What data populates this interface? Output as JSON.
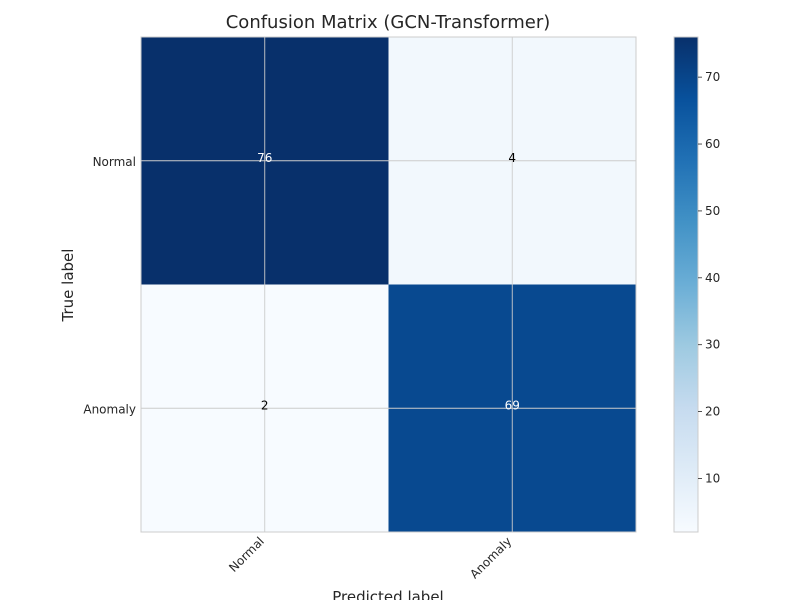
{
  "chart_data": {
    "type": "heatmap",
    "title": "Confusion Matrix (GCN-Transformer)",
    "xlabel": "Predicted label",
    "ylabel": "True label",
    "x_categories": [
      "Normal",
      "Anomaly"
    ],
    "y_categories": [
      "Normal",
      "Anomaly"
    ],
    "values": [
      [
        76,
        4
      ],
      [
        2,
        69
      ]
    ],
    "colormap": "Blues",
    "color_range": [
      2,
      76
    ],
    "colorbar_ticks": [
      10,
      20,
      30,
      40,
      50,
      60,
      70
    ],
    "grid": true,
    "colors": {
      "low": "#f7fbff",
      "high": "#08306b",
      "grid": "#cccccc",
      "text_on_dark": "#ffffff",
      "text_on_light": "#000000"
    }
  }
}
